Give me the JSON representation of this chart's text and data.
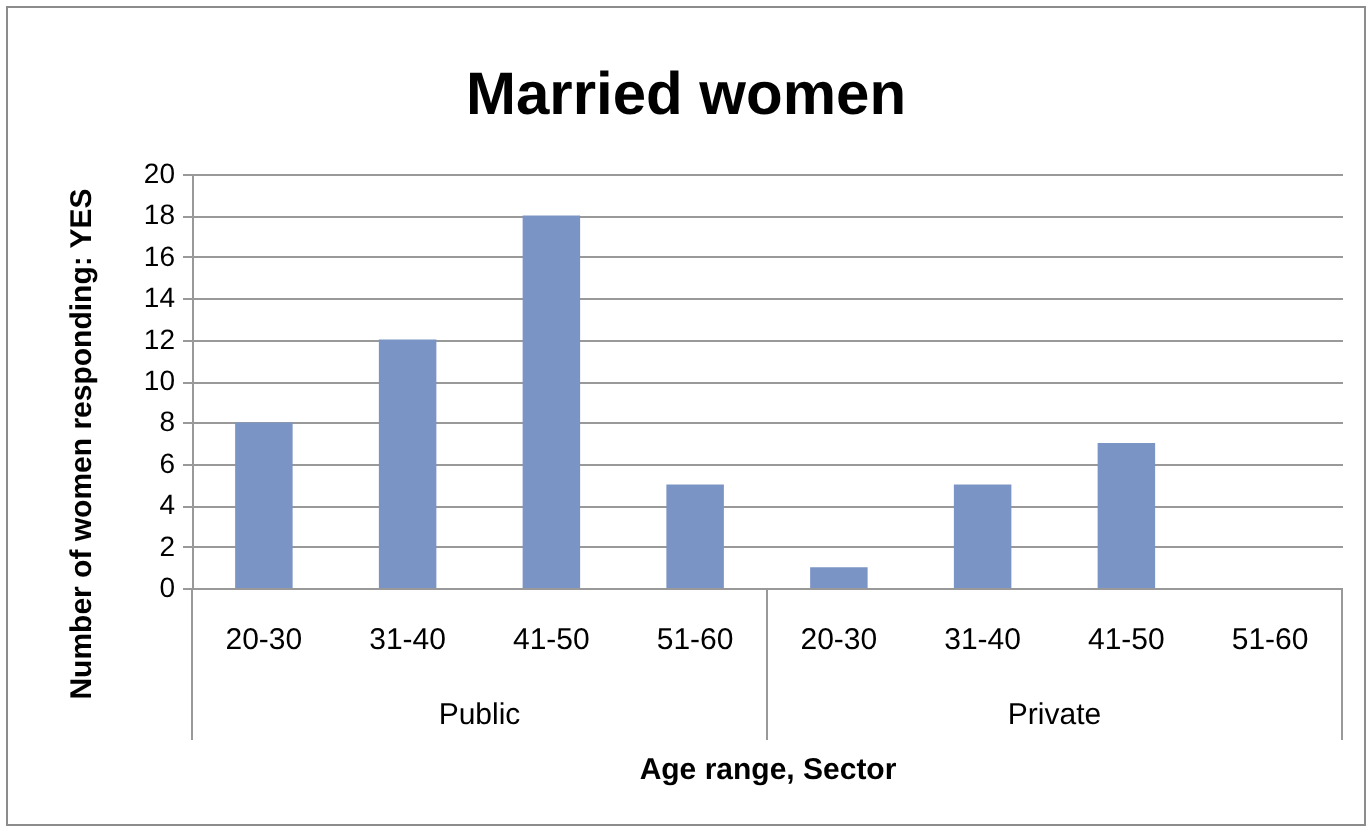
{
  "chart_data": {
    "type": "bar",
    "title": "Married women",
    "xlabel": "Age range, Sector",
    "ylabel": "Number of women responding: YES",
    "categories": [
      "20-30",
      "31-40",
      "41-50",
      "51-60",
      "20-30",
      "31-40",
      "41-50",
      "51-60"
    ],
    "values": [
      8,
      12,
      18,
      5,
      1,
      5,
      7,
      null
    ],
    "color": "#7a95c5",
    "ylim": [
      0,
      20
    ],
    "yticks": [
      0,
      2,
      4,
      6,
      8,
      10,
      12,
      14,
      16,
      18,
      20
    ],
    "grid": "y",
    "annotations": [
      "Public",
      "Private"
    ]
  }
}
